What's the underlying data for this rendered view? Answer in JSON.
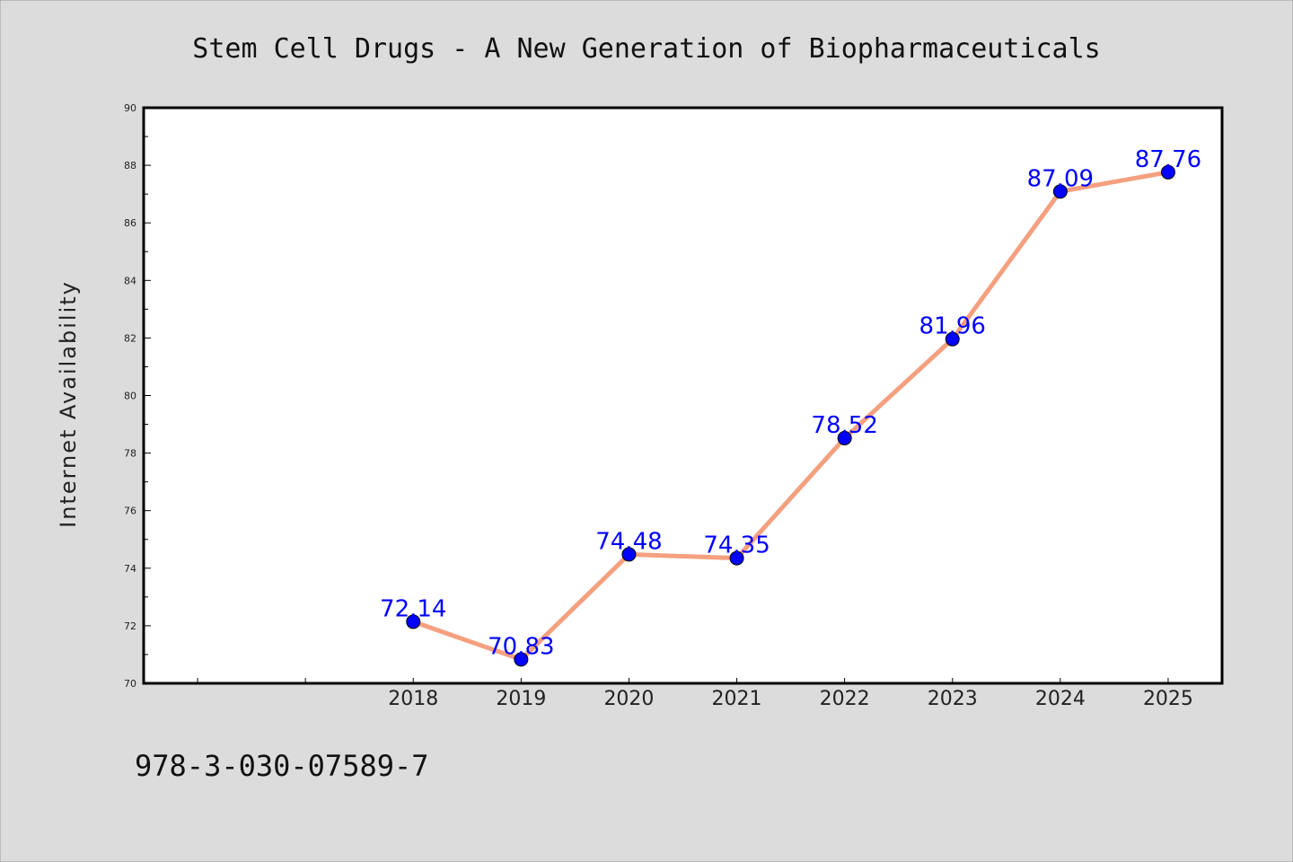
{
  "chart_data": {
    "type": "line",
    "title": "Stem Cell Drugs - A New Generation of Biopharmaceuticals",
    "xlabel": "",
    "ylabel": "Internet Availability",
    "categories": [
      "2018",
      "2019",
      "2020",
      "2021",
      "2022",
      "2023",
      "2024",
      "2025"
    ],
    "values": [
      72.14,
      70.83,
      74.48,
      74.35,
      78.52,
      81.96,
      87.09,
      87.76
    ],
    "data_labels": [
      "72.14",
      "70.83",
      "74.48",
      "74.35",
      "78.52",
      "81.96",
      "87.09",
      "87.76"
    ],
    "ylim": [
      70,
      90
    ],
    "yticks": [
      "70",
      "72",
      "74",
      "76",
      "78",
      "80",
      "82",
      "84",
      "86",
      "88",
      "90"
    ],
    "x_slot_count": 10,
    "first_category_slot": 2,
    "grid": false,
    "legend": "none",
    "line_color": "#f4a07f",
    "marker_color": "#0000ff",
    "label_color": "#0000ff"
  },
  "footer": {
    "isbn": "978-3-030-07589-7"
  },
  "colors": {
    "background": "#dcdcdc",
    "plot_background": "#ffffff",
    "axis": "#000000"
  }
}
